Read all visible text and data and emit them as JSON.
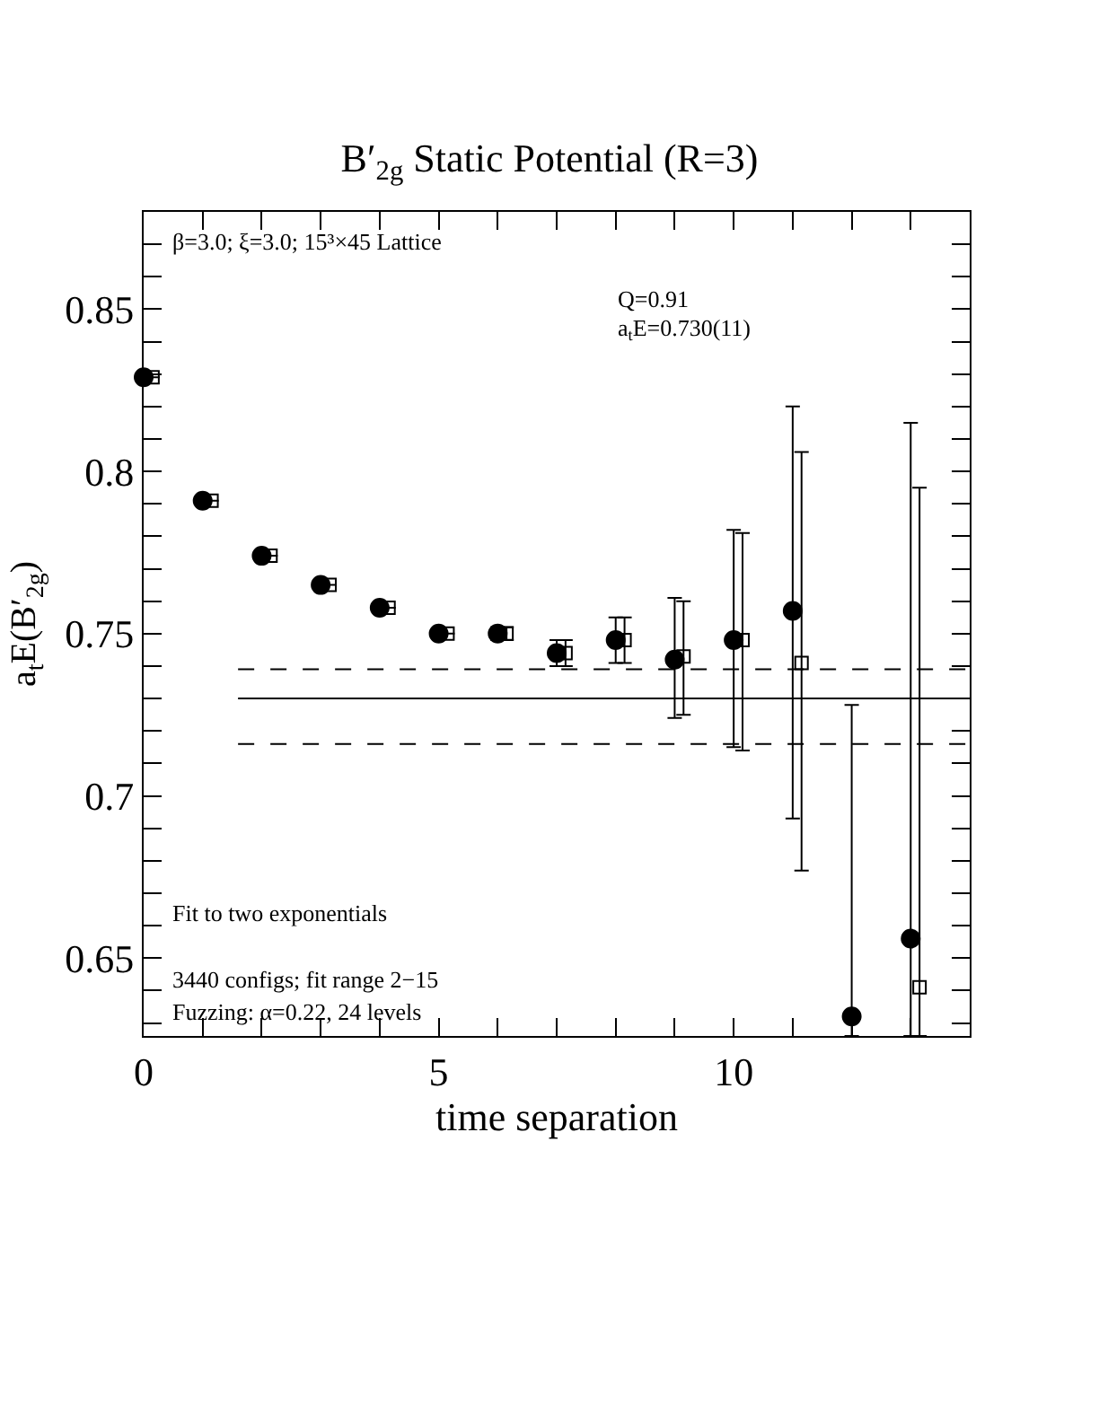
{
  "chart_data": {
    "type": "scatter",
    "title": "B′$_{2g}$ Static Potential (R=3)",
    "xlabel": "time separation",
    "ylabel": "a$_{t}$E(B′$_{2g}$)",
    "x": [
      0,
      1,
      2,
      3,
      4,
      5,
      6,
      7,
      8,
      9,
      10,
      11,
      12,
      13
    ],
    "series": [
      {
        "marker": "circle",
        "color": "#000000",
        "values": [
          0.829,
          0.791,
          0.774,
          0.765,
          0.758,
          0.75,
          0.75,
          0.744,
          0.748,
          0.742,
          0.748,
          0.757,
          0.632,
          0.656
        ],
        "errors": [
          null,
          null,
          null,
          null,
          null,
          null,
          0.002,
          0.004,
          0.007,
          [
            0.724,
            0.761
          ],
          [
            0.715,
            0.782
          ],
          [
            0.693,
            0.82
          ],
          [
            0.626,
            0.728
          ],
          [
            0.626,
            0.815
          ]
        ]
      },
      {
        "marker": "square",
        "color": "#000000",
        "x": [
          0.15,
          1.15,
          2.15,
          3.15,
          4.15,
          5.15,
          6.15,
          7.15,
          8.15,
          9.15,
          10.15,
          11.15,
          12.15,
          13.15
        ],
        "values": [
          0.829,
          0.791,
          0.774,
          0.765,
          0.758,
          0.75,
          0.75,
          0.744,
          0.748,
          0.743,
          0.748,
          0.741,
          null,
          0.641
        ],
        "errors": [
          null,
          null,
          null,
          null,
          null,
          null,
          0.002,
          0.004,
          0.007,
          [
            0.725,
            0.76
          ],
          [
            0.714,
            0.781
          ],
          [
            0.677,
            0.806
          ],
          null,
          [
            0.626,
            0.795
          ]
        ]
      },
      {
        "type": "line",
        "line_style": "solid",
        "color": "#000000",
        "x": [
          1.6,
          14
        ],
        "values": [
          0.73,
          0.73
        ]
      },
      {
        "type": "line",
        "line_style": "dashed",
        "color": "#000000",
        "x": [
          1.6,
          14
        ],
        "values": [
          0.739,
          0.739
        ]
      },
      {
        "type": "line",
        "line_style": "dashed",
        "color": "#000000",
        "x": [
          1.6,
          14
        ],
        "values": [
          0.716,
          0.716
        ]
      }
    ],
    "xlim": [
      0,
      14
    ],
    "xticks": [
      0,
      {
        "value": 1,
        "label": null
      },
      {
        "value": 2,
        "label": null
      },
      {
        "value": 3,
        "label": null
      },
      {
        "value": 4,
        "label": null
      },
      5,
      {
        "value": 6,
        "label": null
      },
      {
        "value": 7,
        "label": null
      },
      {
        "value": 8,
        "label": null
      },
      {
        "value": 9,
        "label": null
      },
      10,
      {
        "value": 11,
        "label": null
      },
      {
        "value": 12,
        "label": null
      },
      {
        "value": 13,
        "label": null
      }
    ],
    "ylim": [
      0.626,
      0.88
    ],
    "yticks": [
      {
        "value": 0.63,
        "label": null
      },
      {
        "value": 0.64,
        "label": null
      },
      0.65,
      {
        "value": 0.66,
        "label": null
      },
      {
        "value": 0.67,
        "label": null
      },
      {
        "value": 0.68,
        "label": null
      },
      {
        "value": 0.69,
        "label": null
      },
      0.7,
      {
        "value": 0.71,
        "label": null
      },
      {
        "value": 0.72,
        "label": null
      },
      {
        "value": 0.73,
        "label": null
      },
      {
        "value": 0.74,
        "label": null
      },
      0.75,
      {
        "value": 0.76,
        "label": null
      },
      {
        "value": 0.77,
        "label": null
      },
      {
        "value": 0.78,
        "label": null
      },
      {
        "value": 0.79,
        "label": null
      },
      0.8,
      {
        "value": 0.81,
        "label": null
      },
      {
        "value": 0.82,
        "label": null
      },
      {
        "value": 0.83,
        "label": null
      },
      {
        "value": 0.84,
        "label": null
      },
      0.85,
      {
        "value": 0.86,
        "label": null
      },
      {
        "value": 0.87,
        "label": null
      }
    ],
    "legend": false,
    "annotations": [
      "β=3.0; ξ=3.0; 15³×45 Lattice",
      "Q=0.91",
      "a$_{t}$E=0.730(11)",
      "Fit to two exponentials",
      "3440 configs; fit range 2−15",
      "Fuzzing: α=0.22, 24 levels"
    ]
  }
}
